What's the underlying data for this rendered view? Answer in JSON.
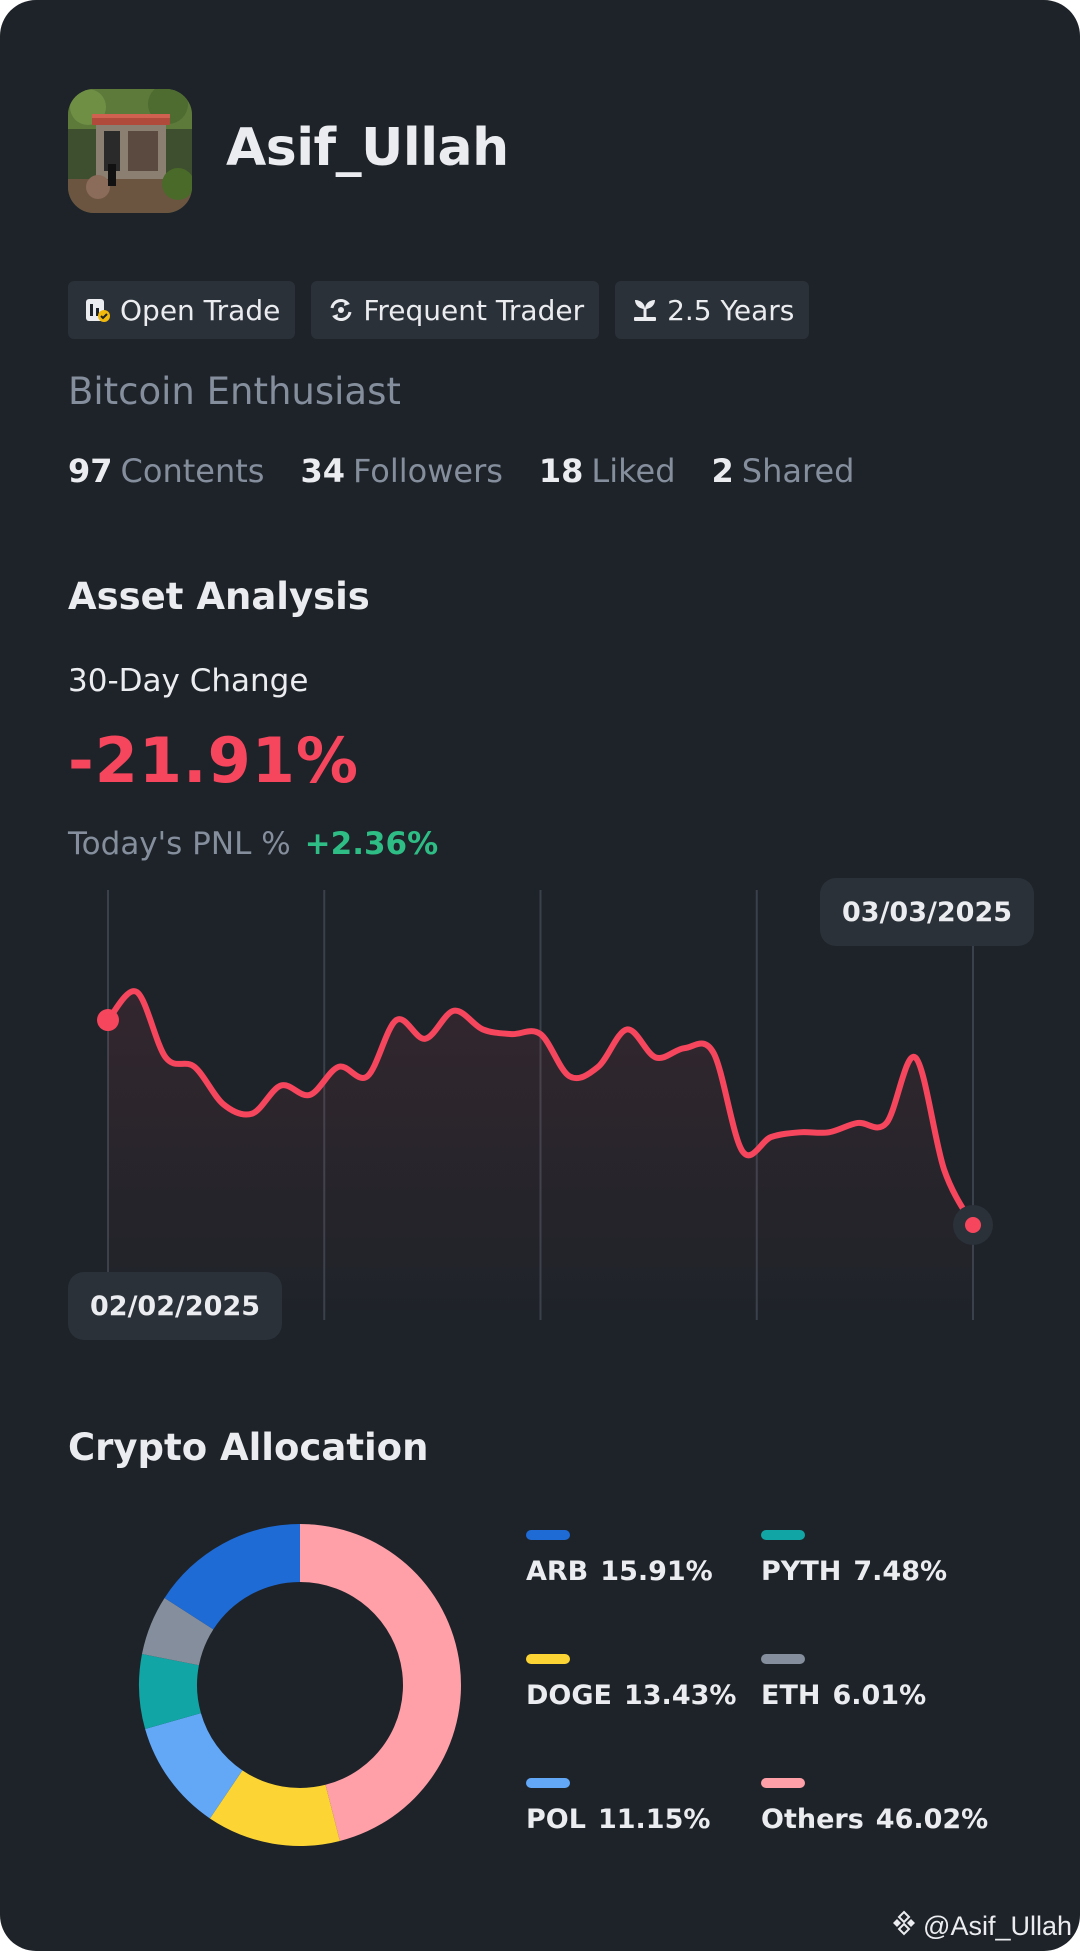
{
  "profile": {
    "username": "Asif_Ullah",
    "bio": "Bitcoin Enthusiast",
    "tags": [
      {
        "label": "Open Trade",
        "icon": "open-trade-icon"
      },
      {
        "label": "Frequent Trader",
        "icon": "refresh-icon"
      },
      {
        "label": "2.5 Years",
        "icon": "sprout-icon"
      }
    ],
    "stats": [
      {
        "value": "97",
        "label": "Contents"
      },
      {
        "value": "34",
        "label": "Followers"
      },
      {
        "value": "18",
        "label": "Liked"
      },
      {
        "value": "2",
        "label": "Shared"
      }
    ]
  },
  "asset_analysis": {
    "title": "Asset Analysis",
    "change_label": "30-Day Change",
    "change_value": "-21.91%",
    "pnl_label": "Today's PNL %",
    "pnl_value": "+2.36%",
    "start_date": "02/02/2025",
    "end_date": "03/03/2025"
  },
  "allocation": {
    "title": "Crypto Allocation"
  },
  "watermark": "@Asif_Ullah",
  "colors": {
    "background": "#1e2329",
    "negative": "#f6465d",
    "positive": "#2ebd85",
    "muted": "#848e9c"
  },
  "chart_data": [
    {
      "type": "line",
      "title": "",
      "xlabel": "",
      "ylabel": "",
      "x": [
        0,
        1,
        2,
        3,
        4,
        5,
        6,
        7,
        8,
        9,
        10,
        11,
        12,
        13,
        14,
        15,
        16,
        17,
        18,
        19,
        20,
        21,
        22,
        23,
        24,
        25,
        26,
        27,
        28,
        29,
        30
      ],
      "series": [
        {
          "name": "",
          "values": [
            0,
            3,
            -4,
            -5,
            -9,
            -10,
            -7,
            -8,
            -5,
            -6,
            0,
            -2,
            1,
            -1,
            -1.5,
            -1.5,
            -6,
            -5,
            -1,
            -4,
            -3,
            -3.5,
            -14,
            -12.5,
            -12,
            -12,
            -11,
            -11,
            -4,
            -16,
            -21.91
          ]
        }
      ],
      "x_start_label": "02/02/2025",
      "x_end_label": "03/03/2025",
      "grid": "vertical"
    },
    {
      "type": "pie",
      "title": "Crypto Allocation",
      "categories": [
        "ARB",
        "DOGE",
        "POL",
        "PYTH",
        "ETH",
        "Others"
      ],
      "values": [
        15.91,
        13.43,
        11.15,
        7.48,
        6.01,
        46.02
      ],
      "labels": [
        "15.91%",
        "13.43%",
        "11.15%",
        "7.48%",
        "6.01%",
        "46.02%"
      ],
      "colors": [
        "#1e6bd6",
        "#fcd535",
        "#62a8f7",
        "#12a5a5",
        "#848e9c",
        "#ff9fa8"
      ],
      "donut": true,
      "legend": "right"
    }
  ]
}
